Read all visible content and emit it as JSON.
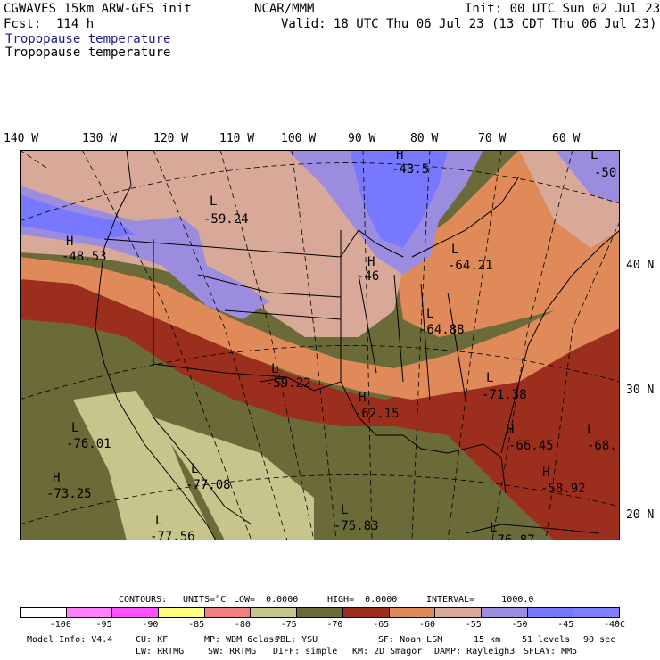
{
  "header": {
    "model": "CGWAVES 15km ARW-GFS init",
    "org": "NCAR/MMM",
    "init": "Init: 00 UTC Sun 02 Jul 23",
    "fcst": "Fcst:  114 h",
    "valid": "Valid: 18 UTC Thu 06 Jul 23 (13 CDT Thu 06 Jul 23)",
    "field_title_1": "Tropopause temperature",
    "field_title_2": "Tropopause temperature"
  },
  "axes": {
    "lon_labels": [
      "140 W",
      "130 W",
      "120 W",
      "110 W",
      "100 W",
      "90 W",
      "80 W",
      "70 W",
      "60 W"
    ],
    "lat_labels": [
      "40 N",
      "30 N",
      "20 N"
    ]
  },
  "map_labels": [
    {
      "letter": "L",
      "value": "-59.24"
    },
    {
      "letter": "H",
      "value": "-48.53"
    },
    {
      "letter": "H",
      "value": "-43.5"
    },
    {
      "letter": "L",
      "value": "-50"
    },
    {
      "letter": "H",
      "value": "-46"
    },
    {
      "letter": "L",
      "value": "-64.21"
    },
    {
      "letter": "L",
      "value": "-64.88"
    },
    {
      "letter": "L",
      "value": "-59.22"
    },
    {
      "letter": "H",
      "value": "-62.15"
    },
    {
      "letter": "L",
      "value": "-71.38"
    },
    {
      "letter": "H",
      "value": "-66.45"
    },
    {
      "letter": "L",
      "value": "-68."
    },
    {
      "letter": "H",
      "value": "-58.92"
    },
    {
      "letter": "L",
      "value": "-76.01"
    },
    {
      "letter": "H",
      "value": "-73.25"
    },
    {
      "letter": "L",
      "value": "-77.08"
    },
    {
      "letter": "L",
      "value": "-77.56"
    },
    {
      "letter": "L",
      "value": "-75.83"
    },
    {
      "letter": "L",
      "value": "-76.87"
    }
  ],
  "contour_info": {
    "contours": "CONTOURS:",
    "units": "UNITS=°C",
    "low": "LOW=  0.0000",
    "high": "HIGH=  0.0000",
    "interval": "INTERVAL=     1000.0"
  },
  "colorbar": {
    "colors": [
      "#ffffff",
      "#ff80ff",
      "#ff50ff",
      "#ffff80",
      "#f08080",
      "#c6c68c",
      "#6b6b3a",
      "#9c2e1e",
      "#e08a5a",
      "#d8a898",
      "#9c8ce0",
      "#7878ff",
      "#8080ff"
    ],
    "ticks": [
      "-100",
      "-95",
      "-90",
      "-85",
      "-80",
      "-75",
      "-70",
      "-65",
      "-60",
      "-55",
      "-50",
      "-45",
      "-40"
    ],
    "unit": "°C"
  },
  "model_info": {
    "line1": [
      "Model Info: V4.4",
      "CU: KF",
      "MP: WDM 6class",
      "PBL: YSU",
      "SF: Noah LSM",
      "15 km",
      "51 levels",
      "90 sec"
    ],
    "line2": [
      "LW: RRTMG",
      "SW: RRTMG",
      "DIFF: simple",
      "KM: 2D Smagor",
      "DAMP: Rayleigh3",
      "SFLAY: MM5"
    ]
  }
}
